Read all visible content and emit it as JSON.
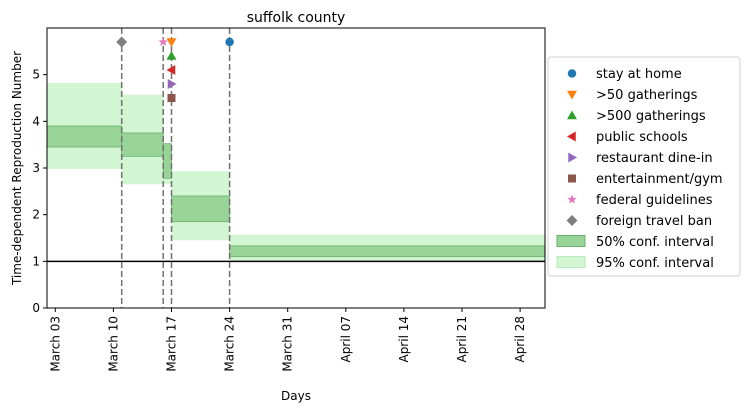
{
  "chart_data": {
    "type": "step-band",
    "title": "suffolk county",
    "xlabel": "Days",
    "ylabel": "Time-dependent Reproduction Number",
    "ylim": [
      0,
      6
    ],
    "yticks": [
      0,
      1,
      2,
      3,
      4,
      5
    ],
    "xlim": [
      "2020-03-02",
      "2020-05-01"
    ],
    "xticks": [
      {
        "date": "2020-03-03",
        "label": "March 03"
      },
      {
        "date": "2020-03-10",
        "label": "March 10"
      },
      {
        "date": "2020-03-17",
        "label": "March 17"
      },
      {
        "date": "2020-03-24",
        "label": "March 24"
      },
      {
        "date": "2020-03-31",
        "label": "March 31"
      },
      {
        "date": "2020-04-07",
        "label": "April 07"
      },
      {
        "date": "2020-04-14",
        "label": "April 14"
      },
      {
        "date": "2020-04-21",
        "label": "April 21"
      },
      {
        "date": "2020-04-28",
        "label": "April 28"
      }
    ],
    "reference_line_y": 1,
    "segments": [
      {
        "start": "2020-03-02",
        "end": "2020-03-11",
        "ci50": [
          3.45,
          3.9
        ],
        "ci95": [
          2.98,
          4.82
        ]
      },
      {
        "start": "2020-03-11",
        "end": "2020-03-16",
        "ci50": [
          3.25,
          3.75
        ],
        "ci95": [
          2.65,
          4.57
        ]
      },
      {
        "start": "2020-03-16",
        "end": "2020-03-17",
        "ci50": [
          2.78,
          3.52
        ],
        "ci95": [
          2.65,
          3.52
        ]
      },
      {
        "start": "2020-03-17",
        "end": "2020-03-24",
        "ci50": [
          1.85,
          2.4
        ],
        "ci95": [
          1.45,
          2.93
        ]
      },
      {
        "start": "2020-03-24",
        "end": "2020-05-01",
        "ci50": [
          1.1,
          1.33
        ],
        "ci95": [
          1.02,
          1.57
        ]
      }
    ],
    "interventions": [
      {
        "name": "stay at home",
        "date": "2020-03-24",
        "y": 5.7,
        "marker": "circle",
        "color": "#1f77b4"
      },
      {
        "name": ">50 gatherings",
        "date": "2020-03-17",
        "y": 5.7,
        "marker": "triangle-down",
        "color": "#ff7f0e"
      },
      {
        "name": ">500 gatherings",
        "date": "2020-03-17",
        "y": 5.4,
        "marker": "triangle-up",
        "color": "#2ca02c"
      },
      {
        "name": "public schools",
        "date": "2020-03-17",
        "y": 5.1,
        "marker": "triangle-left",
        "color": "#d62728"
      },
      {
        "name": "restaurant dine-in",
        "date": "2020-03-17",
        "y": 4.8,
        "marker": "triangle-right",
        "color": "#9467bd"
      },
      {
        "name": "entertainment/gym",
        "date": "2020-03-17",
        "y": 4.5,
        "marker": "square",
        "color": "#8c564b"
      },
      {
        "name": "federal guidelines",
        "date": "2020-03-16",
        "y": 5.7,
        "marker": "star",
        "color": "#e377c2"
      },
      {
        "name": "foreign travel ban",
        "date": "2020-03-11",
        "y": 5.7,
        "marker": "diamond",
        "color": "#7f7f7f"
      }
    ],
    "bands": [
      {
        "name": "50% conf. interval",
        "color": "#98d498",
        "edge": "#6bb06b"
      },
      {
        "name": "95% conf. interval",
        "color": "#d2f5d2",
        "edge": "#b8ecb8"
      }
    ],
    "legend_position": "right"
  }
}
